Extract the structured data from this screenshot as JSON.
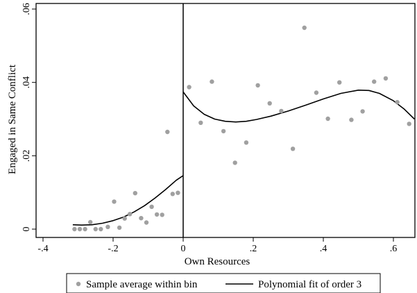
{
  "chart_data": {
    "type": "scatter",
    "xlabel": "Own Resources",
    "ylabel": "Engaged in Same Conflict",
    "xlim": [
      -0.4,
      0.66
    ],
    "ylim": [
      0,
      0.06
    ],
    "xticks": [
      -0.4,
      -0.2,
      0,
      0.2,
      0.4,
      0.6
    ],
    "xtick_labels": [
      "-.4",
      "-.2",
      "0",
      ".2",
      ".4",
      ".6"
    ],
    "yticks": [
      0,
      0.02,
      0.04,
      0.06
    ],
    "ytick_labels": [
      "0",
      ".02",
      ".04",
      ".06"
    ],
    "grid": false,
    "cutoff": 0,
    "legend_position": "bottom",
    "series": [
      {
        "name": "Sample average within bin",
        "kind": "scatter",
        "color": "#a0a0a0",
        "points": [
          [
            -0.31,
            0.0
          ],
          [
            -0.295,
            0.0
          ],
          [
            -0.28,
            0.0
          ],
          [
            -0.265,
            0.0019
          ],
          [
            -0.25,
            0.0
          ],
          [
            -0.235,
            0.0
          ],
          [
            -0.215,
            0.0006
          ],
          [
            -0.197,
            0.0075
          ],
          [
            -0.182,
            0.0004
          ],
          [
            -0.167,
            0.0029
          ],
          [
            -0.152,
            0.0041
          ],
          [
            -0.137,
            0.0098
          ],
          [
            -0.12,
            0.003
          ],
          [
            -0.105,
            0.0018
          ],
          [
            -0.09,
            0.0061
          ],
          [
            -0.075,
            0.004
          ],
          [
            -0.06,
            0.0039
          ],
          [
            -0.045,
            0.0265
          ],
          [
            -0.03,
            0.0096
          ],
          [
            -0.015,
            0.0099
          ],
          [
            0.017,
            0.0387
          ],
          [
            0.05,
            0.029
          ],
          [
            0.082,
            0.0402
          ],
          [
            0.115,
            0.0267
          ],
          [
            0.148,
            0.0181
          ],
          [
            0.18,
            0.0236
          ],
          [
            0.213,
            0.0392
          ],
          [
            0.247,
            0.0343
          ],
          [
            0.28,
            0.0322
          ],
          [
            0.313,
            0.0219
          ],
          [
            0.346,
            0.0549
          ],
          [
            0.38,
            0.0372
          ],
          [
            0.413,
            0.0301
          ],
          [
            0.446,
            0.04
          ],
          [
            0.48,
            0.0298
          ],
          [
            0.512,
            0.0321
          ],
          [
            0.545,
            0.0402
          ],
          [
            0.578,
            0.0411
          ],
          [
            0.611,
            0.0346
          ],
          [
            0.645,
            0.0287
          ]
        ]
      },
      {
        "name": "Polynomial fit of order 3",
        "kind": "line",
        "color": "#000000",
        "segments": [
          [
            [
              -0.315,
              0.0012
            ],
            [
              -0.29,
              0.0011
            ],
            [
              -0.26,
              0.0012
            ],
            [
              -0.23,
              0.0016
            ],
            [
              -0.2,
              0.0023
            ],
            [
              -0.17,
              0.0033
            ],
            [
              -0.14,
              0.0047
            ],
            [
              -0.11,
              0.0064
            ],
            [
              -0.08,
              0.0085
            ],
            [
              -0.05,
              0.0108
            ],
            [
              -0.02,
              0.0133
            ],
            [
              0.0,
              0.0146
            ]
          ],
          [
            [
              0.0,
              0.0374
            ],
            [
              0.03,
              0.0336
            ],
            [
              0.06,
              0.0313
            ],
            [
              0.09,
              0.03
            ],
            [
              0.12,
              0.0294
            ],
            [
              0.15,
              0.0292
            ],
            [
              0.18,
              0.0294
            ],
            [
              0.21,
              0.0299
            ],
            [
              0.25,
              0.0308
            ],
            [
              0.3,
              0.0322
            ],
            [
              0.35,
              0.0338
            ],
            [
              0.4,
              0.0355
            ],
            [
              0.45,
              0.037
            ],
            [
              0.5,
              0.0379
            ],
            [
              0.53,
              0.0378
            ],
            [
              0.56,
              0.037
            ],
            [
              0.6,
              0.035
            ],
            [
              0.63,
              0.0328
            ],
            [
              0.66,
              0.03
            ]
          ]
        ]
      }
    ]
  }
}
